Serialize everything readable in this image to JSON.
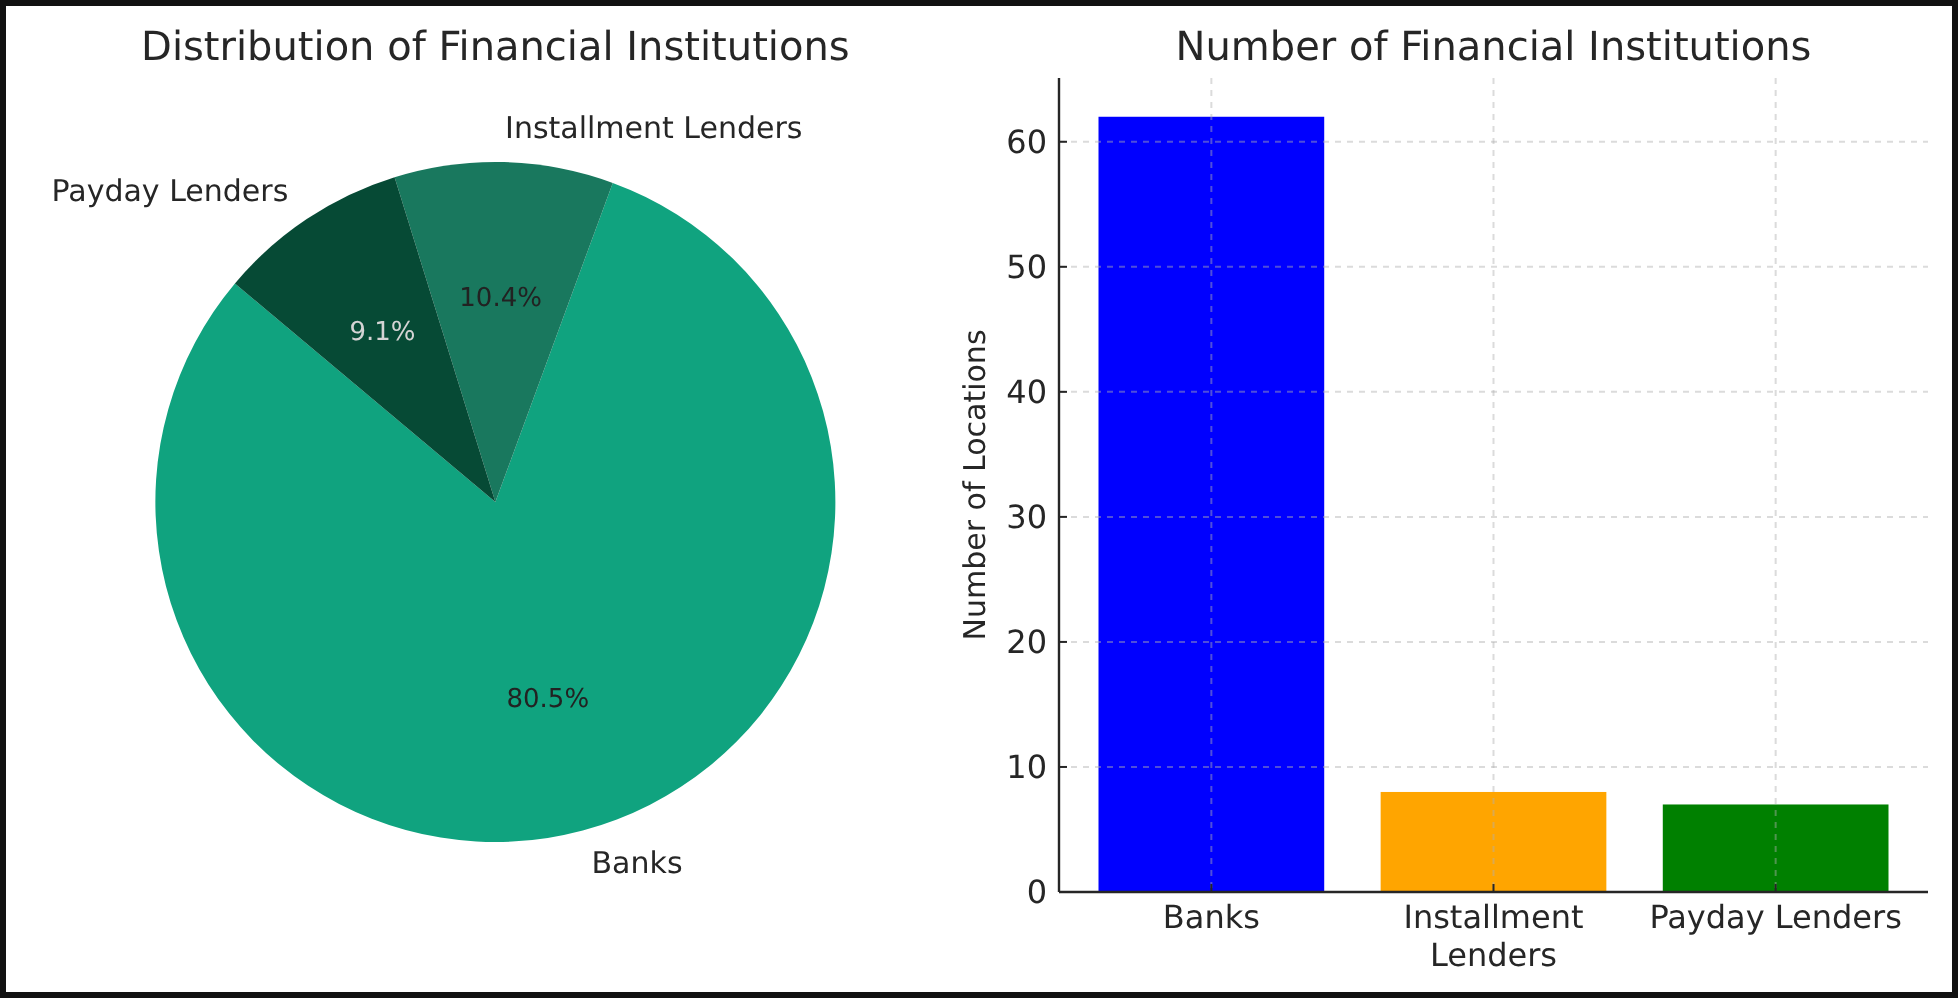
{
  "chart_data": [
    {
      "type": "pie",
      "title": "Distribution of Financial Institutions",
      "categories": [
        "Banks",
        "Installment Lenders",
        "Payday Lenders"
      ],
      "values": [
        80.5,
        10.4,
        9.1
      ],
      "colors": [
        "#10a37f",
        "#19785e",
        "#064a35"
      ],
      "value_labels": [
        "80.5%",
        "10.4%",
        "9.1%"
      ]
    },
    {
      "type": "bar",
      "title": "Number of Financial Institutions",
      "ylabel": "Number of Locations",
      "categories": [
        "Banks",
        "Installment Lenders",
        "Payday Lenders"
      ],
      "values": [
        62,
        8,
        7
      ],
      "colors": [
        "#0000ff",
        "#ffa500",
        "#008000"
      ],
      "ylim": [
        0,
        65.1
      ],
      "yticks": [
        0,
        10,
        20,
        30,
        40,
        50,
        60
      ],
      "grid": true
    }
  ]
}
